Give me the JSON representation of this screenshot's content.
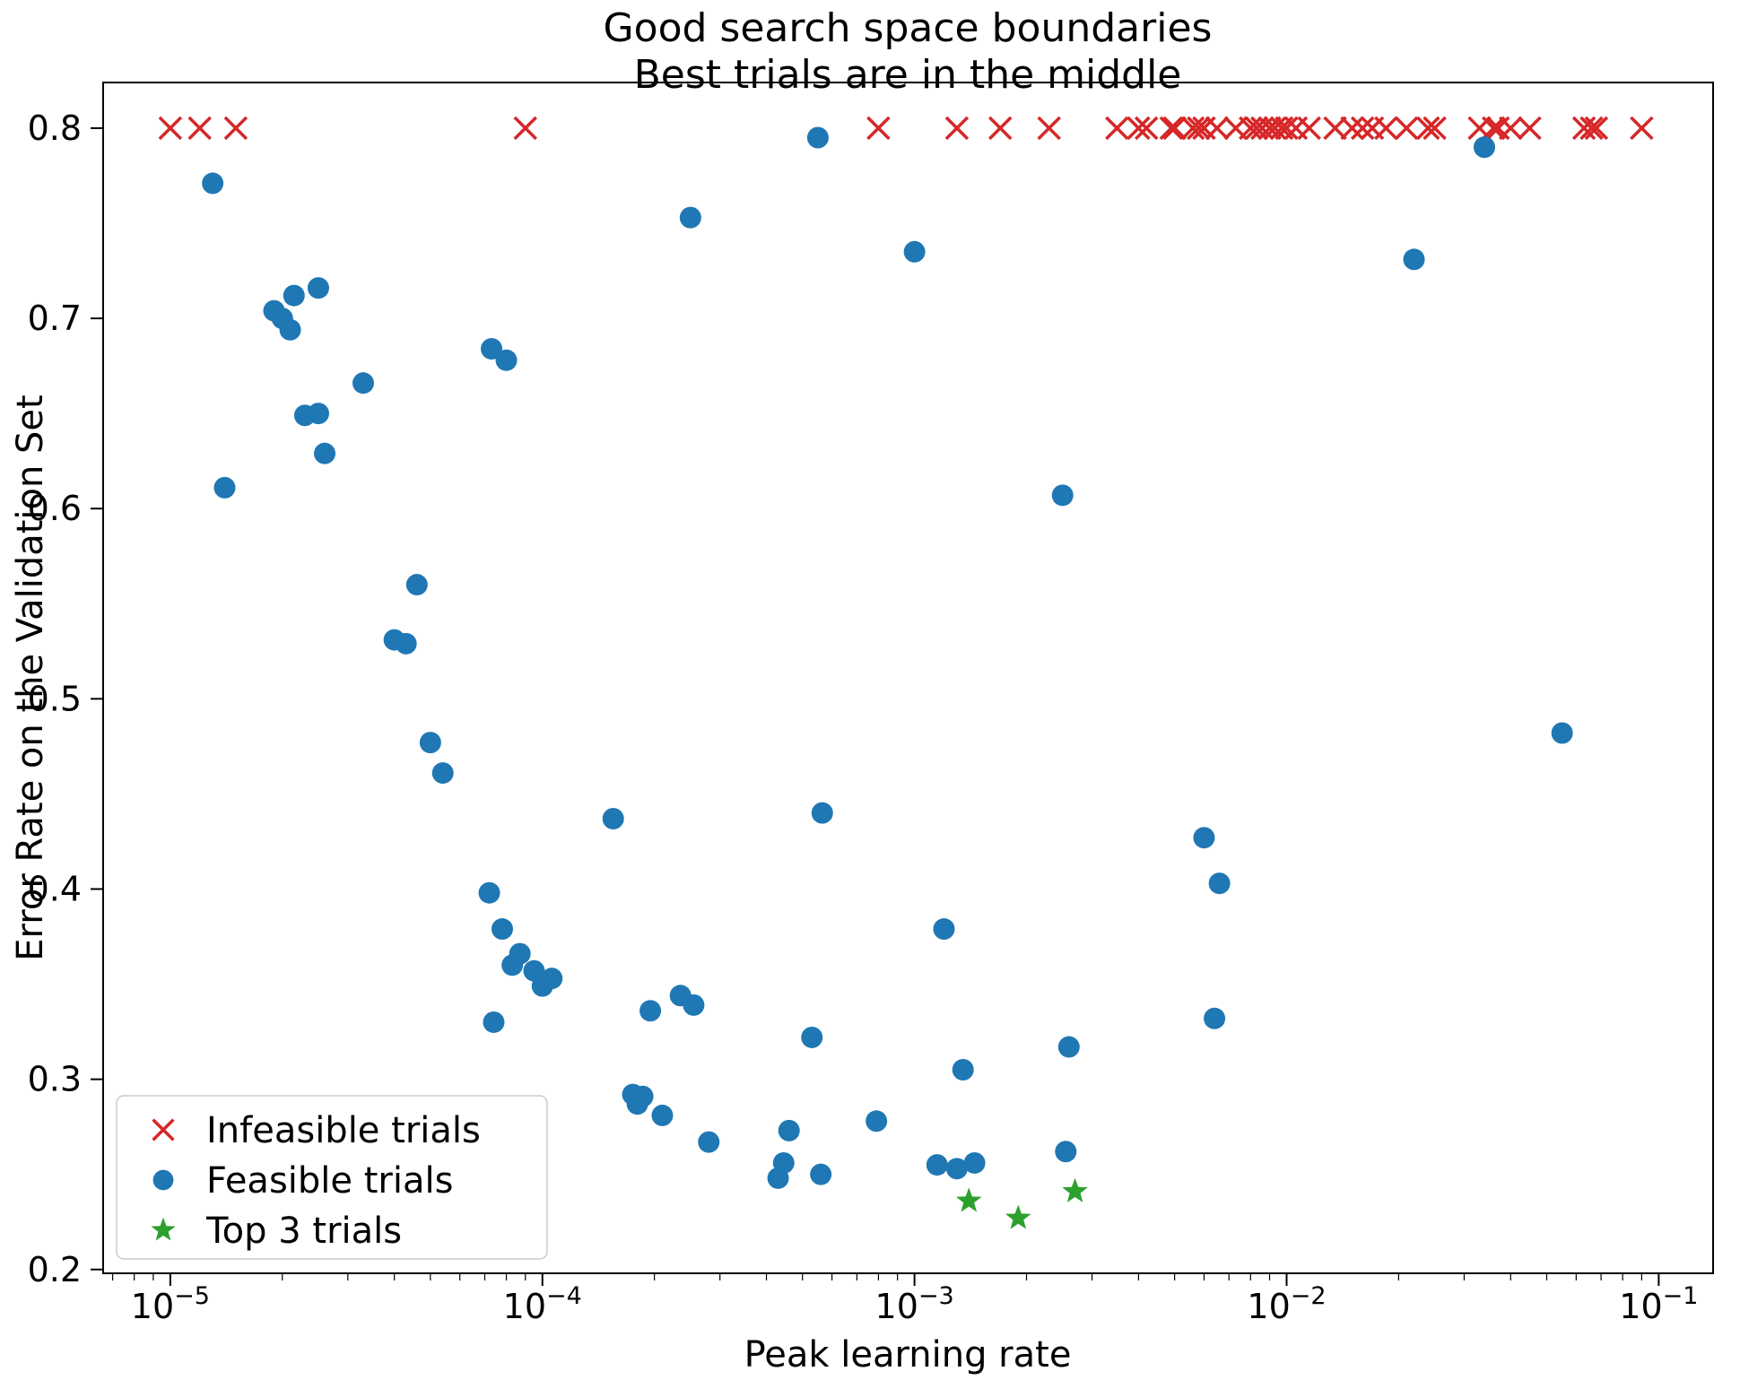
{
  "chart_data": {
    "type": "scatter",
    "title": "Good search space boundaries",
    "subtitle": "Best trials are in the middle",
    "xlabel": "Peak learning rate",
    "ylabel": "Error Rate on the Validation Set",
    "x_scale": "log",
    "grid": false,
    "legend_position": "lower left",
    "xlim": [
      6.6e-06,
      0.14
    ],
    "ylim": [
      0.198,
      0.824
    ],
    "x_ticks": [
      {
        "base": "10",
        "exponent": "−5",
        "value": 1e-05
      },
      {
        "base": "10",
        "exponent": "−4",
        "value": 0.0001
      },
      {
        "base": "10",
        "exponent": "−3",
        "value": 0.001
      },
      {
        "base": "10",
        "exponent": "−2",
        "value": 0.01
      },
      {
        "base": "10",
        "exponent": "−1",
        "value": 0.1
      }
    ],
    "y_ticks": [
      {
        "label": "0.2",
        "value": 0.2
      },
      {
        "label": "0.3",
        "value": 0.3
      },
      {
        "label": "0.4",
        "value": 0.4
      },
      {
        "label": "0.5",
        "value": 0.5
      },
      {
        "label": "0.6",
        "value": 0.6
      },
      {
        "label": "0.7",
        "value": 0.7
      },
      {
        "label": "0.8",
        "value": 0.8
      }
    ],
    "series": [
      {
        "name": "Infeasible trials",
        "marker": "x",
        "color": "#d62728",
        "points": [
          [
            1e-05,
            0.8
          ],
          [
            1.2e-05,
            0.8
          ],
          [
            1.5e-05,
            0.8
          ],
          [
            9e-05,
            0.8
          ],
          [
            0.0008,
            0.8
          ],
          [
            0.0013,
            0.8
          ],
          [
            0.0017,
            0.8
          ],
          [
            0.0023,
            0.8
          ],
          [
            0.0035,
            0.8
          ],
          [
            0.004,
            0.8
          ],
          [
            0.0042,
            0.8
          ],
          [
            0.0049,
            0.8
          ],
          [
            0.005,
            0.8
          ],
          [
            0.0056,
            0.8
          ],
          [
            0.0058,
            0.8
          ],
          [
            0.006,
            0.8
          ],
          [
            0.0065,
            0.8
          ],
          [
            0.0073,
            0.8
          ],
          [
            0.008,
            0.8
          ],
          [
            0.0083,
            0.8
          ],
          [
            0.0086,
            0.8
          ],
          [
            0.009,
            0.8
          ],
          [
            0.0093,
            0.8
          ],
          [
            0.0097,
            0.8
          ],
          [
            0.01,
            0.8
          ],
          [
            0.0106,
            0.8
          ],
          [
            0.0115,
            0.8
          ],
          [
            0.0135,
            0.8
          ],
          [
            0.015,
            0.8
          ],
          [
            0.016,
            0.8
          ],
          [
            0.017,
            0.8
          ],
          [
            0.0185,
            0.8
          ],
          [
            0.021,
            0.8
          ],
          [
            0.024,
            0.8
          ],
          [
            0.025,
            0.8
          ],
          [
            0.033,
            0.8
          ],
          [
            0.036,
            0.8
          ],
          [
            0.037,
            0.8
          ],
          [
            0.04,
            0.8
          ],
          [
            0.045,
            0.8
          ],
          [
            0.063,
            0.8
          ],
          [
            0.066,
            0.8
          ],
          [
            0.068,
            0.8
          ],
          [
            0.09,
            0.8
          ]
        ]
      },
      {
        "name": "Feasible trials",
        "marker": "circle",
        "color": "#1f77b4",
        "points": [
          [
            1.3e-05,
            0.771
          ],
          [
            1.4e-05,
            0.611
          ],
          [
            1.9e-05,
            0.704
          ],
          [
            2e-05,
            0.7
          ],
          [
            2.1e-05,
            0.694
          ],
          [
            2.15e-05,
            0.712
          ],
          [
            2.5e-05,
            0.716
          ],
          [
            2.3e-05,
            0.649
          ],
          [
            2.5e-05,
            0.65
          ],
          [
            2.6e-05,
            0.629
          ],
          [
            3.3e-05,
            0.666
          ],
          [
            4e-05,
            0.531
          ],
          [
            4.3e-05,
            0.529
          ],
          [
            4.6e-05,
            0.56
          ],
          [
            5e-05,
            0.477
          ],
          [
            5.4e-05,
            0.461
          ],
          [
            7.3e-05,
            0.684
          ],
          [
            8e-05,
            0.678
          ],
          [
            7.2e-05,
            0.398
          ],
          [
            7.8e-05,
            0.379
          ],
          [
            8.3e-05,
            0.36
          ],
          [
            8.7e-05,
            0.366
          ],
          [
            9.5e-05,
            0.357
          ],
          [
            0.0001,
            0.349
          ],
          [
            0.000106,
            0.353
          ],
          [
            7.4e-05,
            0.33
          ],
          [
            0.000155,
            0.437
          ],
          [
            0.000175,
            0.292
          ],
          [
            0.00018,
            0.287
          ],
          [
            0.000186,
            0.291
          ],
          [
            0.000195,
            0.336
          ],
          [
            0.00021,
            0.281
          ],
          [
            0.000235,
            0.344
          ],
          [
            0.000255,
            0.339
          ],
          [
            0.00028,
            0.267
          ],
          [
            0.00025,
            0.753
          ],
          [
            0.00043,
            0.248
          ],
          [
            0.000445,
            0.256
          ],
          [
            0.00046,
            0.273
          ],
          [
            0.00053,
            0.322
          ],
          [
            0.00056,
            0.25
          ],
          [
            0.00055,
            0.795
          ],
          [
            0.000565,
            0.44
          ],
          [
            0.00079,
            0.278
          ],
          [
            0.001,
            0.735
          ],
          [
            0.0012,
            0.379
          ],
          [
            0.00115,
            0.255
          ],
          [
            0.0013,
            0.253
          ],
          [
            0.00135,
            0.305
          ],
          [
            0.00145,
            0.256
          ],
          [
            0.0025,
            0.607
          ],
          [
            0.0026,
            0.317
          ],
          [
            0.00255,
            0.262
          ],
          [
            0.006,
            0.427
          ],
          [
            0.0066,
            0.403
          ],
          [
            0.0064,
            0.332
          ],
          [
            0.022,
            0.731
          ],
          [
            0.034,
            0.79
          ],
          [
            0.055,
            0.482
          ]
        ]
      },
      {
        "name": "Top 3 trials",
        "marker": "star",
        "color": "#2ca02c",
        "points": [
          [
            0.0014,
            0.236
          ],
          [
            0.0019,
            0.227
          ],
          [
            0.0027,
            0.241
          ]
        ]
      }
    ]
  }
}
